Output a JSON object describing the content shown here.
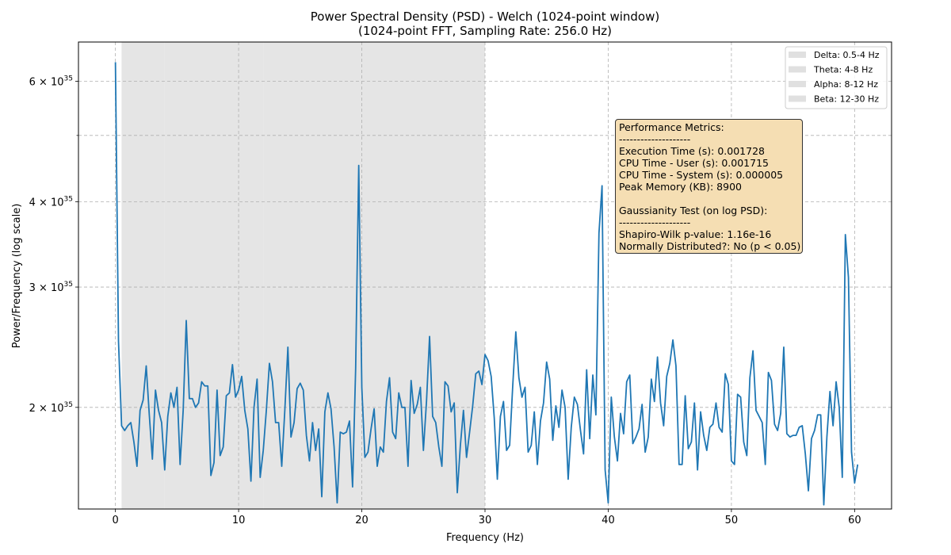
{
  "chart_data": {
    "type": "line",
    "title": "Power Spectral Density (PSD) - Welch (1024-point window)",
    "subtitle": "(1024-point FFT, Sampling Rate: 256.0 Hz)",
    "xlabel": "Frequency (Hz)",
    "ylabel": "Power/Frequency (log scale)",
    "xlim": [
      -3,
      63
    ],
    "ylim": [
      1.42e+35,
      6.85e+35
    ],
    "yscale": "log",
    "grid": true,
    "x_ticks": [
      0,
      10,
      20,
      30,
      40,
      50,
      60
    ],
    "x_tick_labels": [
      "0",
      "10",
      "20",
      "30",
      "40",
      "50",
      "60"
    ],
    "y_major_ticks": [
      {
        "value": 2e+35,
        "mantissa": "2",
        "base": "10",
        "exp": "35"
      },
      {
        "value": 3e+35,
        "mantissa": "3",
        "base": "10",
        "exp": "35"
      },
      {
        "value": 4e+35,
        "mantissa": "4",
        "base": "10",
        "exp": "35"
      },
      {
        "value": 6e+35,
        "mantissa": "6",
        "base": "10",
        "exp": "35"
      }
    ],
    "y_minor_ticks": [
      5e+35
    ],
    "bands": [
      {
        "name": "Delta: 0.5-4 Hz",
        "range": [
          0.5,
          4
        ]
      },
      {
        "name": "Theta: 4-8 Hz",
        "range": [
          4,
          8
        ]
      },
      {
        "name": "Alpha: 8-12 Hz",
        "range": [
          8,
          12
        ]
      },
      {
        "name": "Beta: 12-30 Hz",
        "range": [
          12,
          30
        ]
      }
    ],
    "legend_position": "top-right",
    "band_color": "#e0e0e0",
    "line_color": "#1f77b4",
    "series": [
      {
        "x_start": 0,
        "x_step": 0.25,
        "values_e35": [
          6.4,
          2.5,
          1.88,
          1.85,
          1.88,
          1.9,
          1.78,
          1.64,
          1.98,
          2.05,
          2.3,
          1.95,
          1.68,
          2.12,
          1.98,
          1.9,
          1.62,
          1.94,
          2.1,
          2.0,
          2.14,
          1.65,
          1.98,
          2.68,
          2.06,
          2.06,
          2.0,
          2.03,
          2.18,
          2.15,
          2.15,
          1.59,
          1.66,
          2.12,
          1.7,
          1.75,
          2.08,
          2.1,
          2.31,
          2.07,
          2.12,
          2.22,
          1.98,
          1.86,
          1.56,
          2.0,
          2.2,
          1.58,
          1.73,
          1.98,
          2.32,
          2.18,
          1.9,
          1.9,
          1.64,
          1.98,
          2.45,
          1.81,
          1.9,
          2.13,
          2.17,
          2.12,
          1.82,
          1.67,
          1.9,
          1.73,
          1.86,
          1.48,
          1.97,
          2.1,
          1.99,
          1.75,
          1.45,
          1.84,
          1.83,
          1.84,
          1.91,
          1.53,
          2.28,
          4.52,
          2.14,
          1.69,
          1.72,
          1.86,
          1.99,
          1.64,
          1.75,
          1.72,
          2.04,
          2.21,
          1.84,
          1.8,
          2.1,
          2.0,
          2.0,
          1.64,
          2.19,
          1.96,
          2.02,
          2.14,
          1.73,
          2.04,
          2.54,
          1.94,
          1.9,
          1.75,
          1.64,
          2.18,
          2.15,
          1.97,
          2.03,
          1.5,
          1.76,
          1.98,
          1.69,
          1.84,
          2.01,
          2.24,
          2.26,
          2.16,
          2.39,
          2.34,
          2.22,
          1.93,
          1.57,
          1.94,
          2.04,
          1.73,
          1.76,
          2.15,
          2.58,
          2.21,
          2.07,
          2.14,
          1.72,
          1.76,
          1.97,
          1.65,
          1.91,
          2.03,
          2.33,
          2.2,
          1.79,
          2.01,
          1.87,
          2.12,
          2.0,
          1.57,
          1.87,
          2.07,
          2.02,
          1.85,
          1.71,
          2.27,
          1.8,
          2.23,
          1.95,
          3.6,
          4.22,
          1.62,
          1.45,
          2.07,
          1.81,
          1.67,
          1.96,
          1.83,
          2.18,
          2.23,
          1.77,
          1.81,
          1.86,
          2.02,
          1.72,
          1.81,
          2.2,
          2.04,
          2.37,
          2.03,
          1.88,
          2.22,
          2.32,
          2.51,
          2.3,
          1.65,
          1.65,
          2.08,
          1.74,
          1.78,
          2.03,
          1.62,
          1.97,
          1.82,
          1.73,
          1.87,
          1.89,
          2.03,
          1.87,
          1.84,
          2.24,
          2.16,
          1.67,
          1.65,
          2.09,
          2.07,
          1.78,
          1.7,
          2.21,
          2.42,
          1.98,
          1.94,
          1.9,
          1.65,
          2.25,
          2.19,
          1.89,
          1.85,
          1.96,
          2.45,
          1.83,
          1.81,
          1.82,
          1.82,
          1.87,
          1.88,
          1.71,
          1.51,
          1.8,
          1.85,
          1.95,
          1.95,
          1.44,
          1.81,
          2.11,
          1.88,
          2.18,
          2.0,
          1.58,
          3.58,
          3.1,
          1.72,
          1.55,
          1.65
        ]
      }
    ]
  },
  "metrics_box": {
    "lines": [
      "Performance Metrics:",
      "--------------------",
      "Execution Time (s): 0.001728",
      "CPU Time - User (s): 0.001715",
      "CPU Time - System (s): 0.000005",
      "Peak Memory (KB): 8900",
      "",
      "Gaussianity Test (on log PSD):",
      "--------------------",
      "Shapiro-Wilk p-value: 1.16e-16",
      "Normally Distributed?: No (p < 0.05)"
    ]
  }
}
